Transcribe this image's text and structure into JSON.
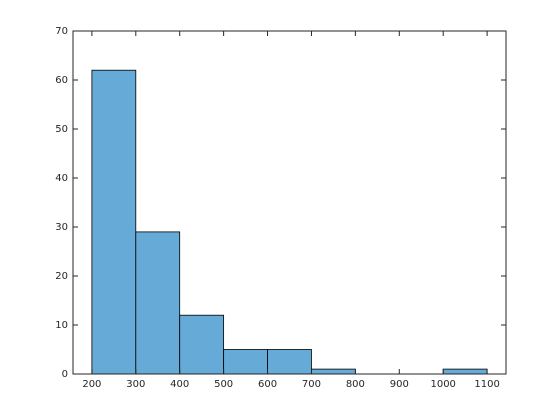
{
  "chart_data": {
    "type": "histogram",
    "bins": [
      200,
      300,
      400,
      500,
      600,
      700,
      800,
      900,
      1000,
      1100
    ],
    "values": [
      62,
      29,
      12,
      5,
      5,
      1,
      0,
      0,
      1
    ],
    "color": "#66aad7",
    "edgecolor": "#000000",
    "xlim": [
      157,
      1143
    ],
    "xticks": [
      200,
      300,
      400,
      500,
      600,
      700,
      800,
      900,
      1000,
      1100
    ],
    "ylim": [
      0,
      70
    ],
    "yticks": [
      0,
      10,
      20,
      30,
      40,
      50,
      60,
      70
    ],
    "grid": false
  }
}
